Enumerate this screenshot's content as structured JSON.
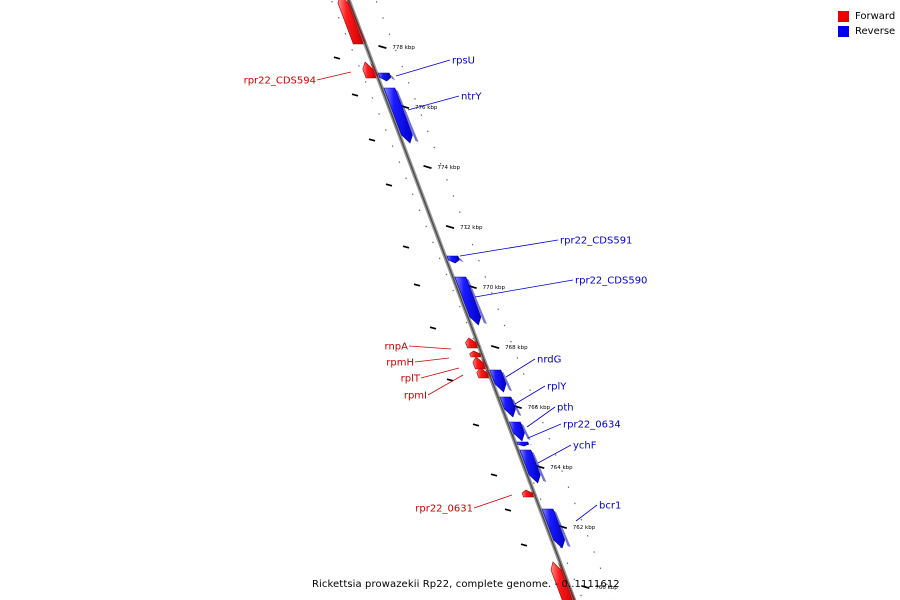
{
  "legend": {
    "items": [
      {
        "label": "Forward",
        "color": "#ee0000"
      },
      {
        "label": "Reverse",
        "color": "#0000ee"
      }
    ]
  },
  "caption": "Rickettsia prowazekii Rp22, complete genome. - 0..1111612",
  "ticks": [
    {
      "kbp": 778,
      "label": "778 kbp"
    },
    {
      "kbp": 776,
      "label": "776 kbp"
    },
    {
      "kbp": 774,
      "label": "774 kbp"
    },
    {
      "kbp": 772,
      "label": "772 kbp"
    },
    {
      "kbp": 770,
      "label": "770 kbp"
    },
    {
      "kbp": 768,
      "label": "768 kbp"
    },
    {
      "kbp": 766,
      "label": "766 kbp"
    },
    {
      "kbp": 764,
      "label": "764 kbp"
    },
    {
      "kbp": 762,
      "label": "762 kbp"
    },
    {
      "kbp": 760,
      "label": "760 kbp"
    }
  ],
  "genes": [
    {
      "name": "",
      "strand": "forward"
    },
    {
      "name": "rpr22_CDS594",
      "strand": "forward"
    },
    {
      "name": "rpsU",
      "strand": "reverse"
    },
    {
      "name": "ntrY",
      "strand": "reverse"
    },
    {
      "name": "rpr22_CDS591",
      "strand": "reverse"
    },
    {
      "name": "rpr22_CDS590",
      "strand": "reverse"
    },
    {
      "name": "rnpA",
      "strand": "forward"
    },
    {
      "name": "rpmH",
      "strand": "forward"
    },
    {
      "name": "rplT",
      "strand": "forward"
    },
    {
      "name": "rpmI",
      "strand": "forward"
    },
    {
      "name": "nrdG",
      "strand": "reverse"
    },
    {
      "name": "rplY",
      "strand": "reverse"
    },
    {
      "name": "pth",
      "strand": "reverse"
    },
    {
      "name": "rpr22_0634",
      "strand": "reverse"
    },
    {
      "name": "ychF",
      "strand": "reverse"
    },
    {
      "name": "rpr22_0631",
      "strand": "forward"
    },
    {
      "name": "bcr1",
      "strand": "reverse"
    },
    {
      "name": "",
      "strand": "forward"
    }
  ]
}
